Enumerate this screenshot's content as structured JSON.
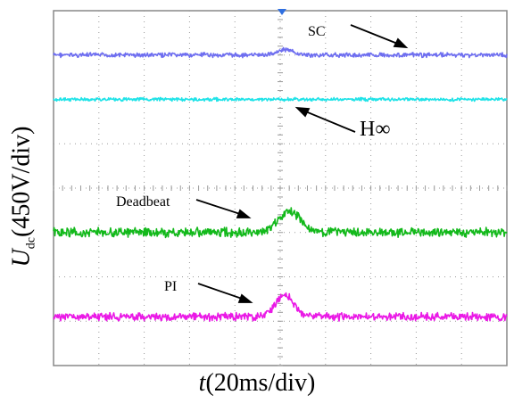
{
  "chart_data": {
    "type": "line",
    "grid": true,
    "grid_divisions": {
      "x": 10,
      "y": 8
    },
    "xlabel": {
      "var": "t",
      "unit": "(20ms/div)"
    },
    "ylabel": {
      "var": "U",
      "sub": "dc",
      "unit": "(450V/div)"
    },
    "trigger_marker": true,
    "series": [
      {
        "name": "SC",
        "color": "#6e6ef0",
        "baseline_div": 1.0,
        "bump_div": 0.12,
        "bump_center_div": 5.1,
        "bump_width_div": 0.25,
        "noise_div": 0.04
      },
      {
        "name": "H∞",
        "color": "#1fe3e8",
        "baseline_div": 2.0,
        "bump_div": 0.0,
        "bump_center_div": 5.1,
        "bump_width_div": 0.25,
        "noise_div": 0.03
      },
      {
        "name": "Deadbeat",
        "color": "#13b91b",
        "baseline_div": 5.0,
        "bump_div": 0.48,
        "bump_center_div": 5.2,
        "bump_width_div": 0.35,
        "noise_div": 0.08
      },
      {
        "name": "PI",
        "color": "#ea19e6",
        "baseline_div": 6.9,
        "bump_div": 0.5,
        "bump_center_div": 5.1,
        "bump_width_div": 0.28,
        "noise_div": 0.07
      }
    ]
  }
}
